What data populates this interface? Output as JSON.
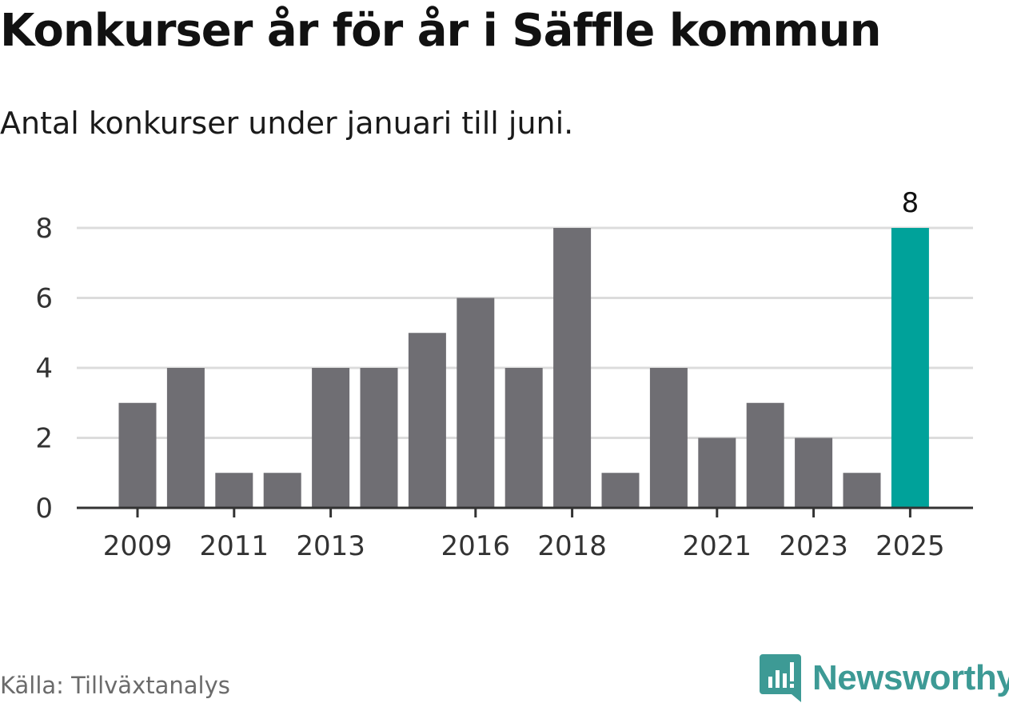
{
  "chart_data": {
    "type": "bar",
    "title": "Konkurser år för år i Säffle kommun",
    "subtitle": "Antal konkurser under januari till juni.",
    "categories": [
      "2009",
      "2010",
      "2011",
      "2012",
      "2013",
      "2014",
      "2015",
      "2016",
      "2017",
      "2018",
      "2019",
      "2020",
      "2021",
      "2022",
      "2023",
      "2024",
      "2025"
    ],
    "values": [
      3,
      4,
      1,
      1,
      4,
      4,
      5,
      6,
      4,
      8,
      1,
      4,
      2,
      3,
      2,
      1,
      8
    ],
    "x_tick_labels": [
      "2009",
      "2011",
      "2013",
      "2016",
      "2018",
      "2021",
      "2023",
      "2025"
    ],
    "y_ticks": [
      0,
      2,
      4,
      6,
      8
    ],
    "ylim": [
      0,
      8
    ],
    "grid": true,
    "highlight": {
      "category": "2025",
      "value_label": "8"
    },
    "colors": {
      "bar": "#6f6e73",
      "highlight": "#00a29a",
      "grid": "#dcdcdc",
      "axis": "#333333"
    }
  },
  "footer": {
    "source": "Källa: Tillväxtanalys",
    "brand": "Newsworthy"
  },
  "icons": {
    "brand_logo": "newsworthy-bar-chart-icon"
  }
}
